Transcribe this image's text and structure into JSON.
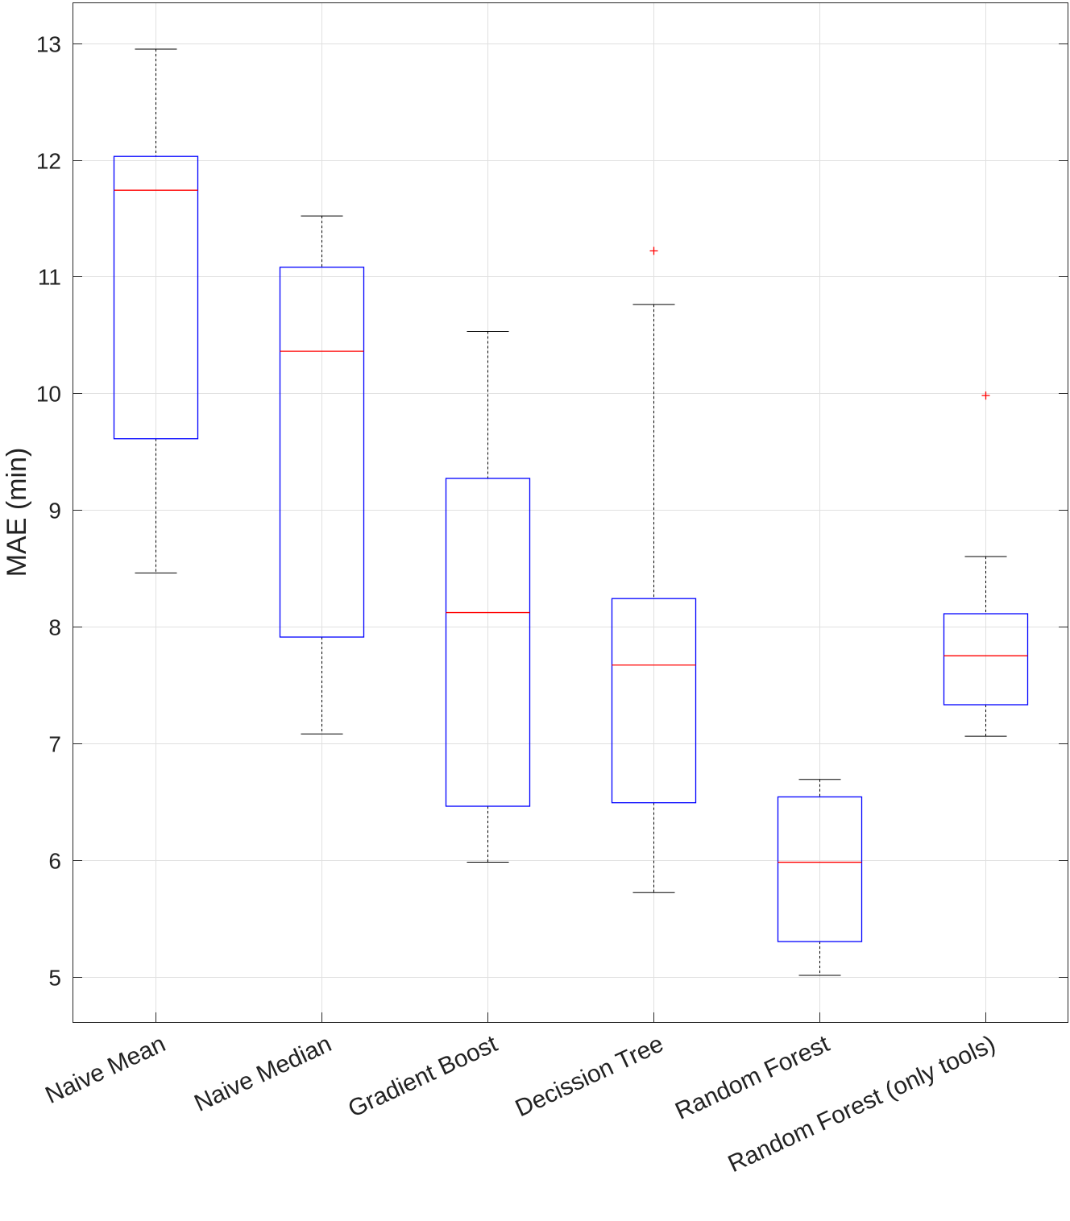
{
  "chart_data": {
    "type": "box",
    "title": "",
    "xlabel": "",
    "ylabel": "MAE (min)",
    "ylim": [
      4.61,
      13.35
    ],
    "yticks": [
      5,
      6,
      7,
      8,
      9,
      10,
      11,
      12,
      13
    ],
    "grid": true,
    "categories": [
      "Naive Mean",
      "Naive Median",
      "Gradient Boost",
      "Decission Tree",
      "Random Forest",
      "Random Forest (only tools)"
    ],
    "boxes": [
      {
        "whisker_low": 8.46,
        "q1": 9.61,
        "median": 11.74,
        "q3": 12.03,
        "whisker_high": 12.95,
        "outliers": []
      },
      {
        "whisker_low": 7.08,
        "q1": 7.91,
        "median": 10.36,
        "q3": 11.08,
        "whisker_high": 11.52,
        "outliers": []
      },
      {
        "whisker_low": 5.98,
        "q1": 6.46,
        "median": 8.12,
        "q3": 9.27,
        "whisker_high": 10.53,
        "outliers": []
      },
      {
        "whisker_low": 5.72,
        "q1": 6.49,
        "median": 7.67,
        "q3": 8.24,
        "whisker_high": 10.76,
        "outliers": [
          11.22
        ]
      },
      {
        "whisker_low": 5.01,
        "q1": 5.3,
        "median": 5.98,
        "q3": 6.54,
        "whisker_high": 6.69,
        "outliers": []
      },
      {
        "whisker_low": 7.06,
        "q1": 7.33,
        "median": 7.75,
        "q3": 8.11,
        "whisker_high": 8.6,
        "outliers": [
          9.98
        ]
      }
    ],
    "colors": {
      "box": "#0000ff",
      "median": "#ff0000",
      "whisker": "#000000",
      "outlier": "#ff0000",
      "grid": "#e0e0e0"
    }
  }
}
